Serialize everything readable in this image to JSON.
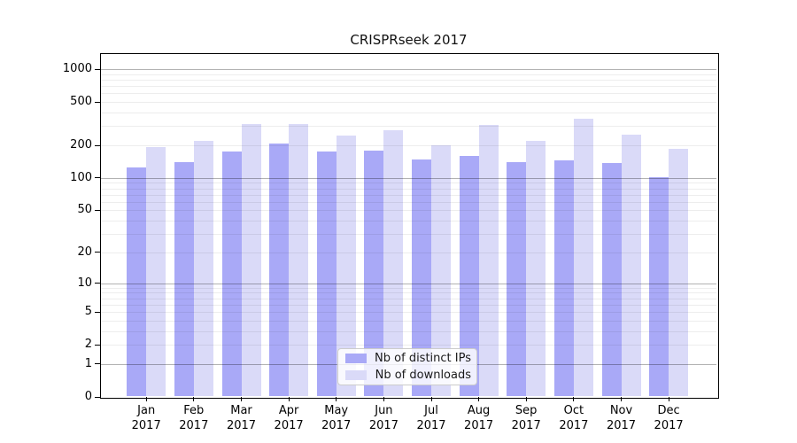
{
  "title": "CRISPRseek 2017",
  "chart_data": {
    "type": "bar",
    "title": "CRISPRseek 2017",
    "categories": [
      "Jan 2017",
      "Feb 2017",
      "Mar 2017",
      "Apr 2017",
      "May 2017",
      "Jun 2017",
      "Jul 2017",
      "Aug 2017",
      "Sep 2017",
      "Oct 2017",
      "Nov 2017",
      "Dec 2017"
    ],
    "series": [
      {
        "key": "ips",
        "name": "Nb of distinct IPs",
        "color": "#a9a9f7",
        "values": [
          124,
          139,
          175,
          208,
          176,
          180,
          148,
          160,
          140,
          146,
          138,
          101
        ]
      },
      {
        "key": "downloads",
        "name": "Nb of downloads",
        "color": "#dadaf8",
        "values": [
          192,
          221,
          316,
          312,
          246,
          275,
          200,
          308,
          219,
          351,
          250,
          185
        ]
      }
    ],
    "xlabel": "",
    "ylabel": "",
    "yticks": [
      0,
      1,
      2,
      5,
      10,
      20,
      50,
      100,
      200,
      500,
      1000
    ],
    "ylim": [
      0,
      1000
    ],
    "yscale": "log1p",
    "grid": "major and minor horizontal gridlines",
    "legend_position": "lower center"
  },
  "legend": {
    "items": [
      {
        "label": "Nb of distinct IPs",
        "color": "#a9a9f7"
      },
      {
        "label": "Nb of downloads",
        "color": "#dadaf8"
      }
    ]
  }
}
